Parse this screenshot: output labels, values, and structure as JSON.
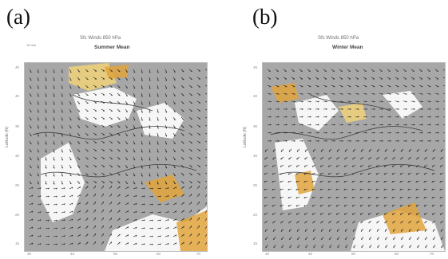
{
  "panels": [
    {
      "letter": "(a)",
      "title": "Sfc Winds 850 hPa",
      "season": "Summer Mean",
      "ref_label": "",
      "arrow_label": "10 m/s",
      "ylabel": "Latitude (N)",
      "xlabel": "",
      "yticks": [
        "45",
        "40",
        "35",
        "30",
        "25",
        "20",
        "15"
      ],
      "xticks": [
        "30",
        "40",
        "50",
        "60",
        "70"
      ]
    },
    {
      "letter": "(b)",
      "title": "Sfc Winds 850 hPa",
      "season": "Winter Mean",
      "ref_label": "",
      "arrow_label": "",
      "ylabel": "Latitude (N)",
      "xlabel": "",
      "yticks": [
        "45",
        "40",
        "35",
        "30",
        "25",
        "20",
        "15"
      ],
      "xticks": [
        "30",
        "40",
        "50",
        "60",
        "70"
      ]
    }
  ],
  "colors": {
    "background": "#ffffff",
    "map_gray": "#a7a7a7",
    "land_gray": "#9c9c9c",
    "sea_white": "#ffffff",
    "shade_orange": "#e0a33c",
    "shade_yellow": "#f0d27a",
    "contour": "#3d3d3d",
    "vector": "#1f1f1f"
  }
}
